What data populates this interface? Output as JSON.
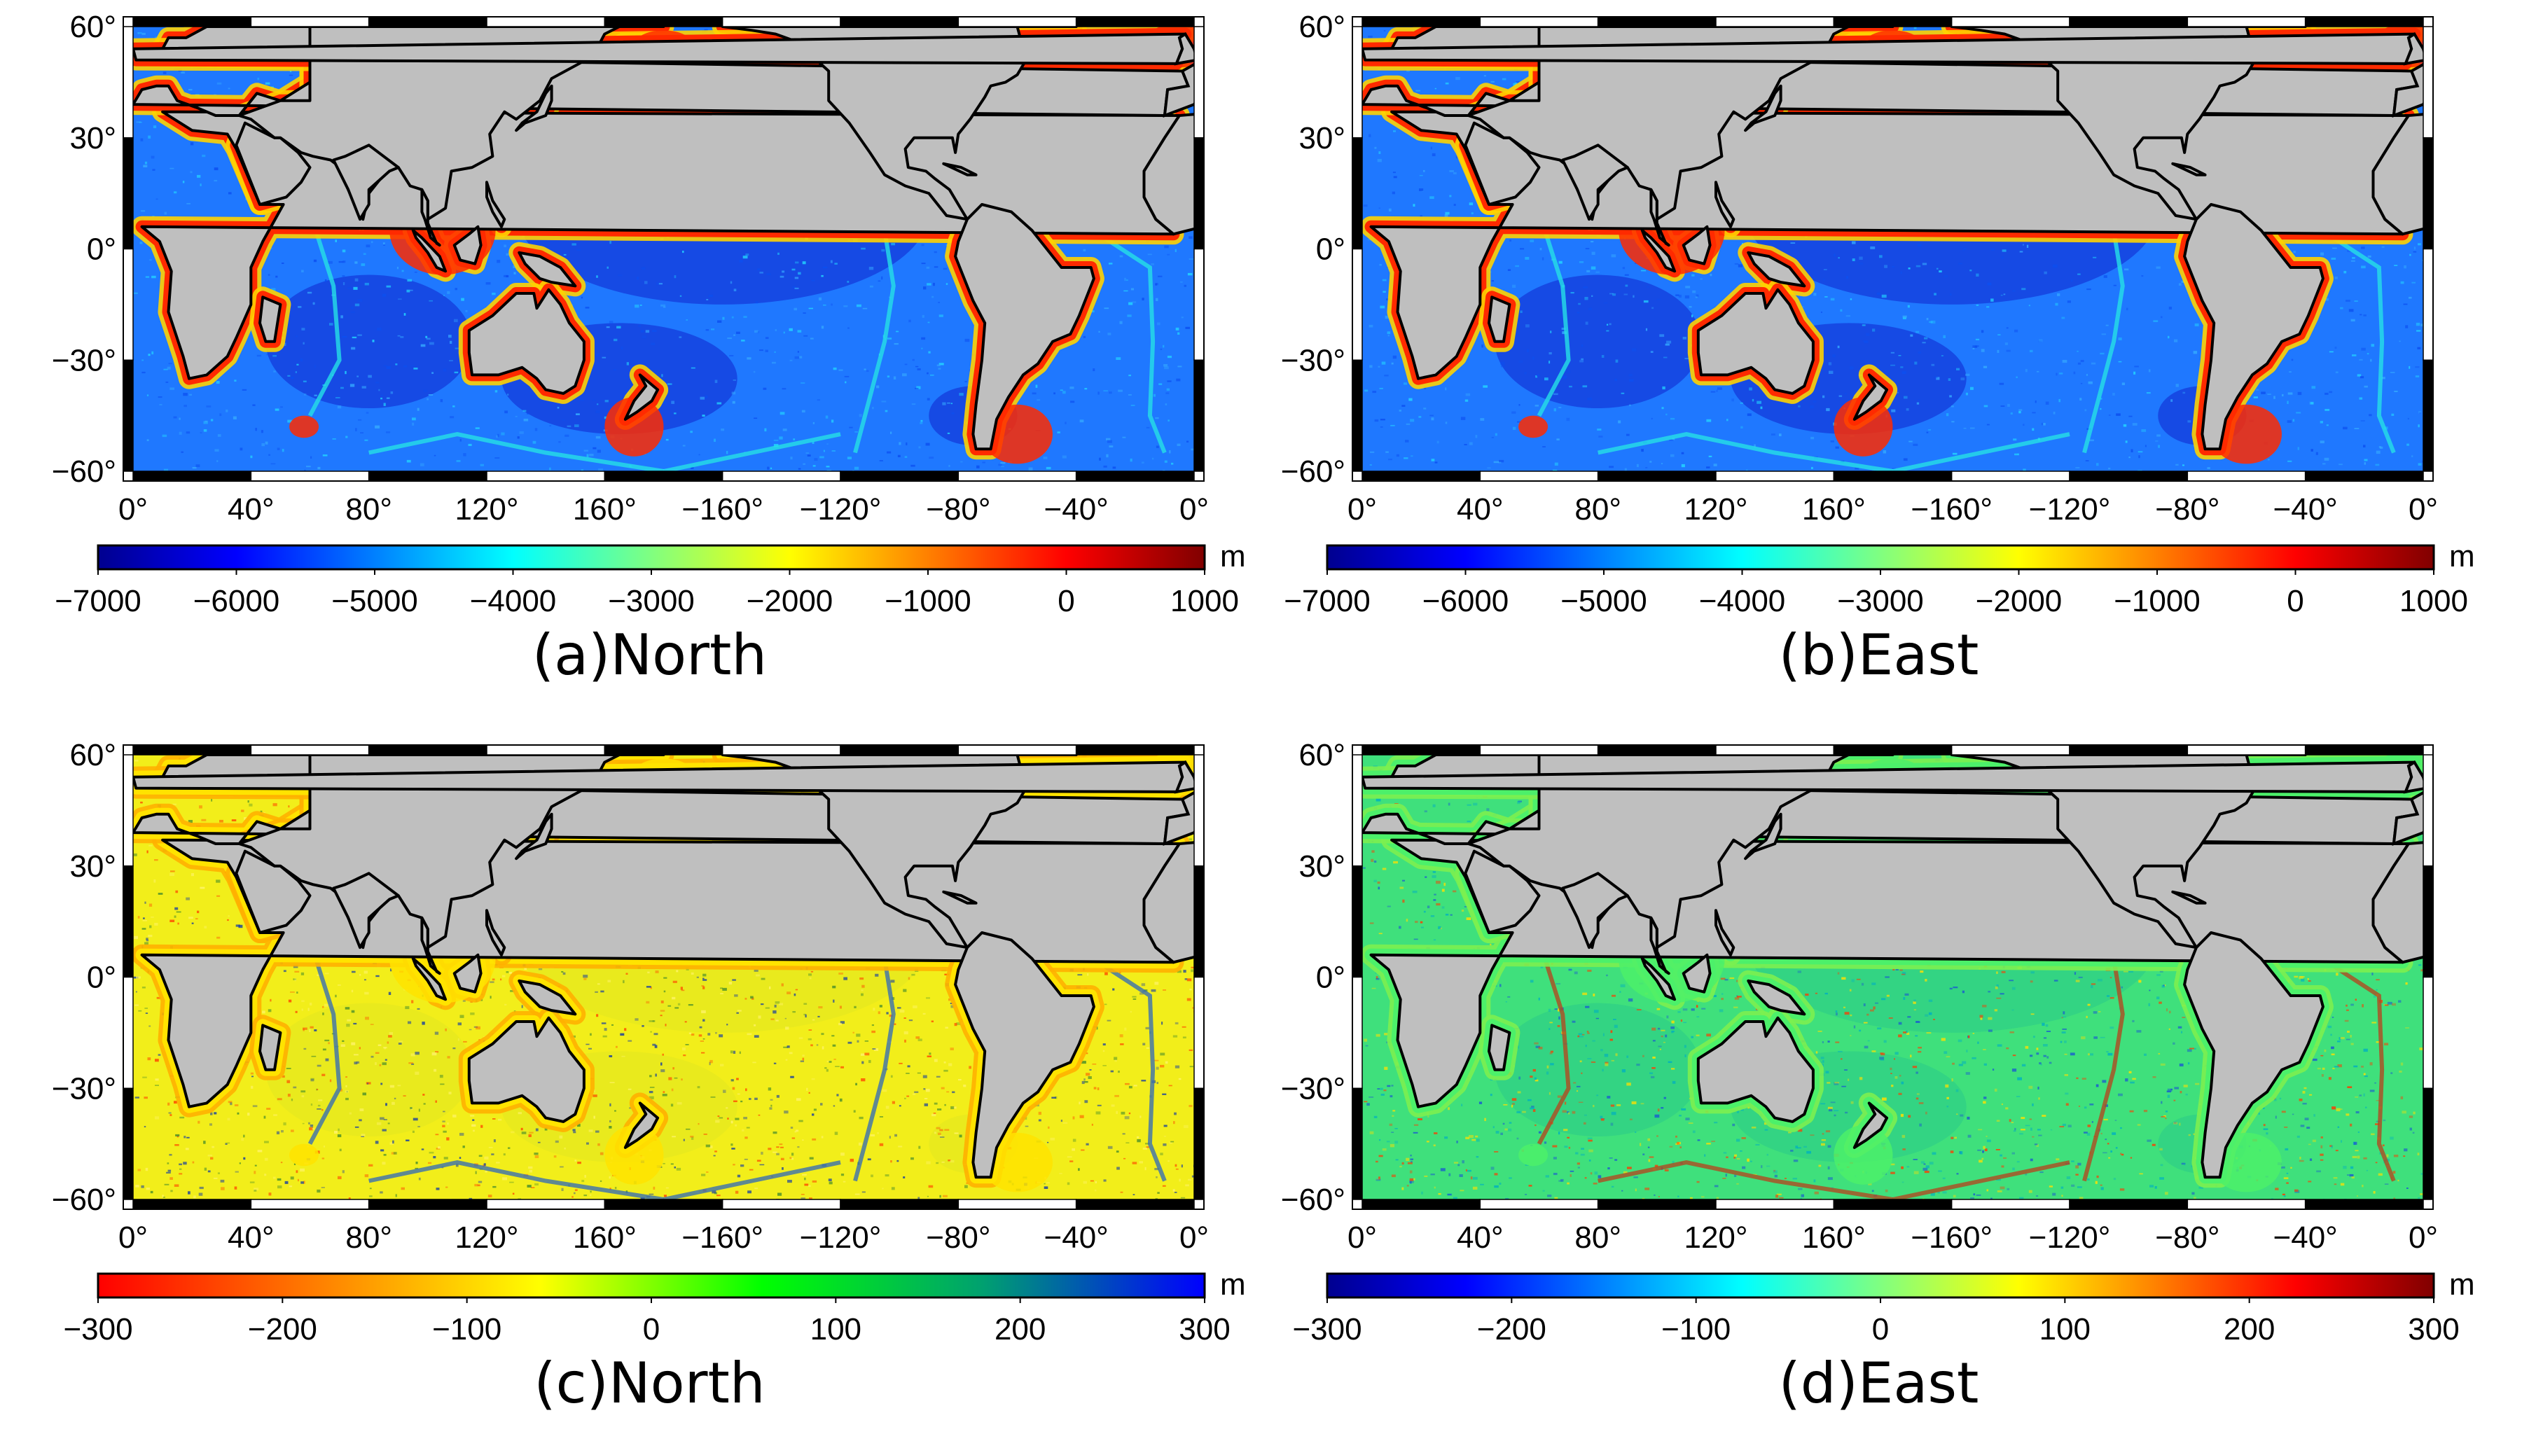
{
  "figure": {
    "lon_ticks": [
      "0°",
      "40°",
      "80°",
      "120°",
      "160°",
      "−160°",
      "−120°",
      "−80°",
      "−40°",
      "0°"
    ],
    "lat_ticks": [
      "60°",
      "30°",
      "0°",
      "−30°",
      "−60°"
    ],
    "map_extent": {
      "lon_range": [
        0,
        360
      ],
      "lat_range": [
        -60,
        60
      ]
    },
    "colors": {
      "land": "#bfbfbf",
      "coast": "#000000",
      "frame_black": "#000000",
      "frame_white": "#ffffff"
    }
  },
  "panels": [
    {
      "id": "a",
      "title": "(a)North",
      "colorbar": {
        "unit": "m",
        "tick_labels": [
          "−7000",
          "−6000",
          "−5000",
          "−4000",
          "−3000",
          "−2000",
          "−1000",
          "0",
          "1000"
        ],
        "range": [
          -7000,
          1000
        ],
        "colormap": [
          "#00008f",
          "#0000ff",
          "#0080ff",
          "#00ffff",
          "#80ff80",
          "#ffff00",
          "#ff8000",
          "#ff0000",
          "#800000"
        ]
      },
      "ocean": {
        "base": "#1f78ff",
        "deep": "#1236d8",
        "shelf": "#ff2a00",
        "slope": "#ffd200",
        "ridge": "#26e0e6",
        "noise": [
          "#0c4ff0",
          "#35a9ff",
          "#23d6ff"
        ]
      }
    },
    {
      "id": "b",
      "title": "(b)East",
      "colorbar": {
        "unit": "m",
        "tick_labels": [
          "−7000",
          "−6000",
          "−5000",
          "−4000",
          "−3000",
          "−2000",
          "−1000",
          "0",
          "1000"
        ],
        "range": [
          -7000,
          1000
        ],
        "colormap": [
          "#00008f",
          "#0000ff",
          "#0080ff",
          "#00ffff",
          "#80ff80",
          "#ffff00",
          "#ff8000",
          "#ff0000",
          "#800000"
        ]
      },
      "ocean": {
        "base": "#1f78ff",
        "deep": "#1236d8",
        "shelf": "#ff2a00",
        "slope": "#ffd200",
        "ridge": "#26e0e6",
        "noise": [
          "#0c4ff0",
          "#35a9ff",
          "#23d6ff"
        ]
      }
    },
    {
      "id": "c",
      "title": "(c)North",
      "colorbar": {
        "unit": "m",
        "tick_labels": [
          "−300",
          "−200",
          "−100",
          "0",
          "100",
          "200",
          "300"
        ],
        "range": [
          -300,
          300
        ],
        "colormap": [
          "#ff0000",
          "#ff8000",
          "#ffff00",
          "#00ff00",
          "#00a070",
          "#0000ff"
        ]
      },
      "ocean": {
        "base": "#f2ee1a",
        "deep": "#e5e820",
        "shelf": "#ffe300",
        "slope": "#ffb000",
        "ridge": "#3a6fb0",
        "noise": [
          "#ff4a00",
          "#4a8f2a",
          "#1a3fa0",
          "#fff36a"
        ]
      }
    },
    {
      "id": "d",
      "title": "(d)East",
      "colorbar": {
        "unit": "m",
        "tick_labels": [
          "−300",
          "−200",
          "−100",
          "0",
          "100",
          "200",
          "300"
        ],
        "range": [
          -300,
          300
        ],
        "colormap": [
          "#00008f",
          "#0000ff",
          "#0080ff",
          "#00ffff",
          "#80ff80",
          "#ffff00",
          "#ff8000",
          "#ff0000",
          "#800000"
        ]
      },
      "ocean": {
        "base": "#3fe07c",
        "deep": "#2fcf86",
        "shelf": "#4cf06a",
        "slope": "#7cf050",
        "ridge": "#b04a20",
        "noise": [
          "#ff3a00",
          "#1a5ad0",
          "#ffe000",
          "#00b0c0"
        ]
      }
    }
  ]
}
